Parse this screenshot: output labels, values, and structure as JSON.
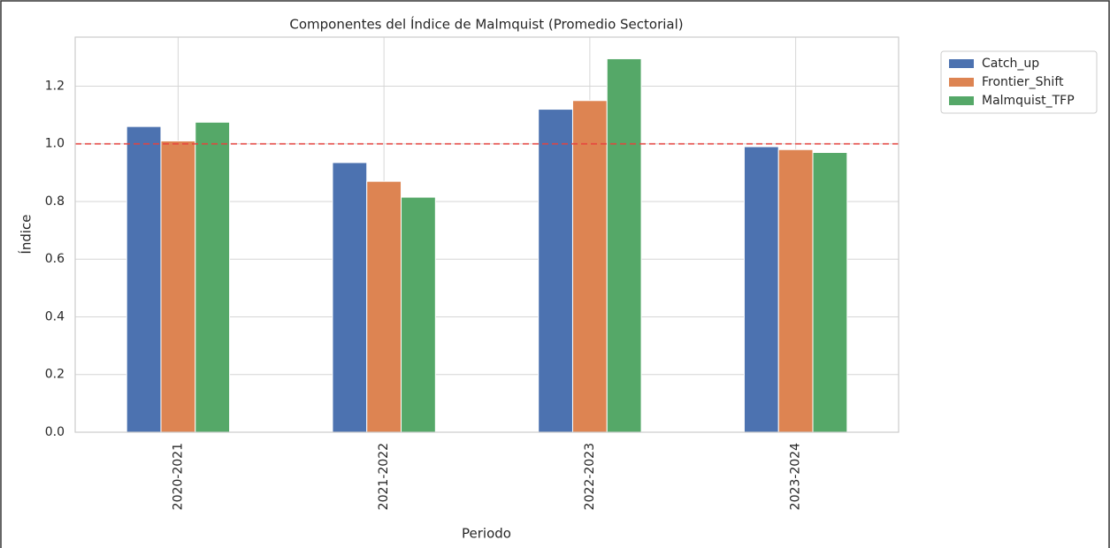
{
  "chart_data": {
    "type": "bar",
    "title": "Componentes del Índice de Malmquist (Promedio Sectorial)",
    "x_label": "Periodo",
    "y_label": "Índice",
    "categories": [
      "2020-2021",
      "2021-2022",
      "2022-2023",
      "2023-2024"
    ],
    "series": [
      {
        "name": "Catch_up",
        "color": "#4c72b0",
        "values": [
          1.06,
          0.935,
          1.12,
          0.99
        ]
      },
      {
        "name": "Frontier_Shift",
        "color": "#dd8452",
        "values": [
          1.01,
          0.87,
          1.15,
          0.98
        ]
      },
      {
        "name": "Malmquist_TFP",
        "color": "#55a868",
        "values": [
          1.075,
          0.815,
          1.295,
          0.97
        ]
      }
    ],
    "ylim": [
      0,
      1.37
    ],
    "yticks": [
      {
        "value": 0,
        "label": "0.0"
      },
      0.2,
      0.4,
      0.6,
      0.8,
      {
        "value": 1,
        "label": "1.0"
      },
      1.2
    ],
    "reference_line": {
      "value": 1,
      "color": "#e8413c"
    },
    "grid": true,
    "legend": "outside-upper-right"
  }
}
